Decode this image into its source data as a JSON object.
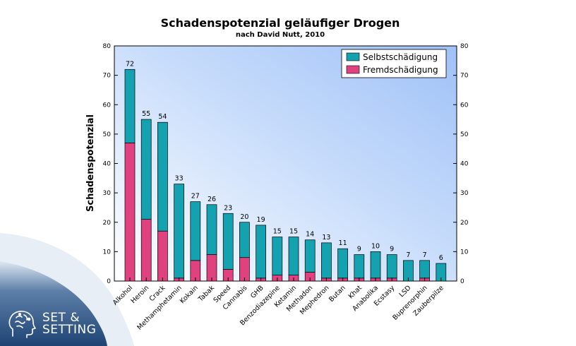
{
  "brand": {
    "line1": "SET &",
    "line2": "SETTING"
  },
  "colors": {
    "self": "#14a2b0",
    "other": "#e0417f",
    "plot_bg_start": "#ffffff",
    "plot_bg_end": "#a9c8f8",
    "corner_wave": "#244a7a"
  },
  "chart_data": {
    "type": "bar",
    "stacked": true,
    "title": "Schadenspotenzial geläufiger Drogen",
    "subtitle": "nach David Nutt, 2010",
    "xlabel": "",
    "ylabel": "Schadenspotenzial",
    "ylim": [
      0,
      80
    ],
    "yticks": [
      0,
      10,
      20,
      30,
      40,
      50,
      60,
      70,
      80
    ],
    "grid": false,
    "legend_position": "top-right",
    "categories": [
      "Alkohol",
      "Heroin",
      "Crack",
      "Methamphetamin",
      "Kokain",
      "Tabak",
      "Speed",
      "Cannabis",
      "GHB",
      "Benzodiazepine",
      "Ketamin",
      "Methadon",
      "Mephedron",
      "Butan",
      "Khat",
      "Anabolika",
      "Ecstasy",
      "LSD",
      "Buprenorphin",
      "Zauberpilze"
    ],
    "totals": [
      72,
      55,
      54,
      33,
      27,
      26,
      23,
      20,
      19,
      15,
      15,
      14,
      13,
      11,
      9,
      10,
      9,
      7,
      7,
      6
    ],
    "series": [
      {
        "name": "Selbstschädigung",
        "values": [
          25,
          34,
          37,
          32,
          20,
          17,
          19,
          12,
          18,
          13,
          13,
          11,
          12,
          10,
          8,
          9,
          8,
          7,
          6,
          6
        ]
      },
      {
        "name": "Fremdschädigung",
        "values": [
          47,
          21,
          17,
          1,
          7,
          9,
          4,
          8,
          1,
          2,
          2,
          3,
          1,
          1,
          1,
          1,
          1,
          0,
          1,
          0
        ]
      }
    ]
  }
}
